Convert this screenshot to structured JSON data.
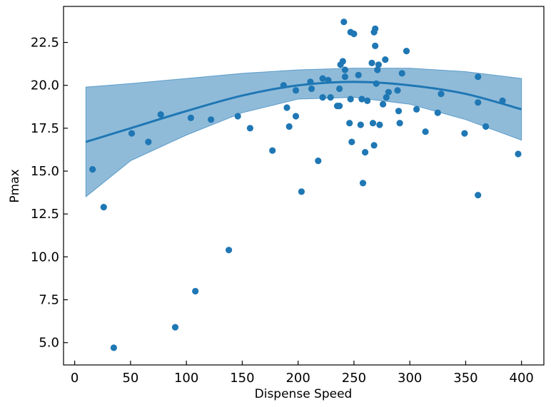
{
  "chart_data": {
    "type": "scatter",
    "title": "",
    "xlabel": "Dispense Speed",
    "ylabel": "Pmax",
    "xlim": [
      -10,
      420
    ],
    "ylim": [
      3.7,
      24.6
    ],
    "xticks": [
      0,
      50,
      100,
      150,
      200,
      250,
      300,
      350,
      400
    ],
    "yticks": [
      5.0,
      7.5,
      10.0,
      12.5,
      15.0,
      17.5,
      20.0,
      22.5
    ],
    "xtick_labels": [
      "0",
      "50",
      "100",
      "150",
      "200",
      "250",
      "300",
      "350",
      "400"
    ],
    "ytick_labels": [
      "5.0",
      "7.5",
      "10.0",
      "12.5",
      "15.0",
      "17.5",
      "20.0",
      "22.5"
    ],
    "grid": false,
    "colors": {
      "points": "#1f77b4",
      "fit_line": "#1f77b4",
      "band": "#1f77b4"
    },
    "points": [
      [
        16,
        15.1
      ],
      [
        26,
        12.9
      ],
      [
        35,
        4.7
      ],
      [
        51,
        17.2
      ],
      [
        66,
        16.7
      ],
      [
        77,
        18.3
      ],
      [
        90,
        5.9
      ],
      [
        104,
        18.1
      ],
      [
        108,
        8.0
      ],
      [
        122,
        18.0
      ],
      [
        138,
        10.4
      ],
      [
        146,
        18.2
      ],
      [
        157,
        17.5
      ],
      [
        177,
        16.2
      ],
      [
        187,
        20.0
      ],
      [
        190,
        18.7
      ],
      [
        192,
        17.6
      ],
      [
        198,
        19.7
      ],
      [
        198,
        18.2
      ],
      [
        203,
        13.8
      ],
      [
        211,
        20.2
      ],
      [
        212,
        19.8
      ],
      [
        218,
        15.6
      ],
      [
        222,
        20.4
      ],
      [
        222,
        19.3
      ],
      [
        227,
        20.3
      ],
      [
        229,
        19.3
      ],
      [
        235,
        18.8
      ],
      [
        237,
        18.8
      ],
      [
        237,
        19.8
      ],
      [
        238,
        21.2
      ],
      [
        240,
        21.4
      ],
      [
        241,
        23.7
      ],
      [
        242,
        20.9
      ],
      [
        242,
        20.5
      ],
      [
        246,
        17.8
      ],
      [
        247,
        23.1
      ],
      [
        247,
        19.2
      ],
      [
        248,
        16.7
      ],
      [
        250,
        23.0
      ],
      [
        254,
        20.6
      ],
      [
        256,
        17.7
      ],
      [
        257,
        19.2
      ],
      [
        258,
        14.3
      ],
      [
        260,
        16.1
      ],
      [
        262,
        19.1
      ],
      [
        266,
        21.3
      ],
      [
        267,
        17.8
      ],
      [
        268,
        16.5
      ],
      [
        268,
        23.1
      ],
      [
        269,
        23.3
      ],
      [
        269,
        22.3
      ],
      [
        270,
        20.1
      ],
      [
        271,
        20.9
      ],
      [
        272,
        21.2
      ],
      [
        273,
        17.7
      ],
      [
        276,
        18.9
      ],
      [
        278,
        21.5
      ],
      [
        279,
        19.3
      ],
      [
        281,
        19.6
      ],
      [
        289,
        19.7
      ],
      [
        290,
        18.5
      ],
      [
        291,
        17.8
      ],
      [
        293,
        20.7
      ],
      [
        297,
        22.0
      ],
      [
        306,
        18.6
      ],
      [
        314,
        17.3
      ],
      [
        325,
        18.4
      ],
      [
        328,
        19.5
      ],
      [
        349,
        17.2
      ],
      [
        361,
        20.5
      ],
      [
        361,
        19.0
      ],
      [
        361,
        13.6
      ],
      [
        368,
        17.6
      ],
      [
        383,
        19.1
      ],
      [
        397,
        16.0
      ]
    ],
    "fit_line": {
      "x": [
        10,
        50,
        100,
        150,
        200,
        250,
        300,
        350,
        400
      ],
      "y": [
        16.7,
        17.5,
        18.5,
        19.4,
        20.0,
        20.2,
        20.0,
        19.5,
        18.6
      ]
    },
    "confidence_band": {
      "x": [
        10,
        50,
        100,
        150,
        200,
        250,
        300,
        350,
        400
      ],
      "lower": [
        13.5,
        15.6,
        17.1,
        18.4,
        19.2,
        19.3,
        18.9,
        18.0,
        16.8
      ],
      "upper": [
        19.9,
        20.1,
        20.4,
        20.7,
        20.9,
        21.0,
        21.0,
        20.8,
        20.4
      ]
    }
  }
}
